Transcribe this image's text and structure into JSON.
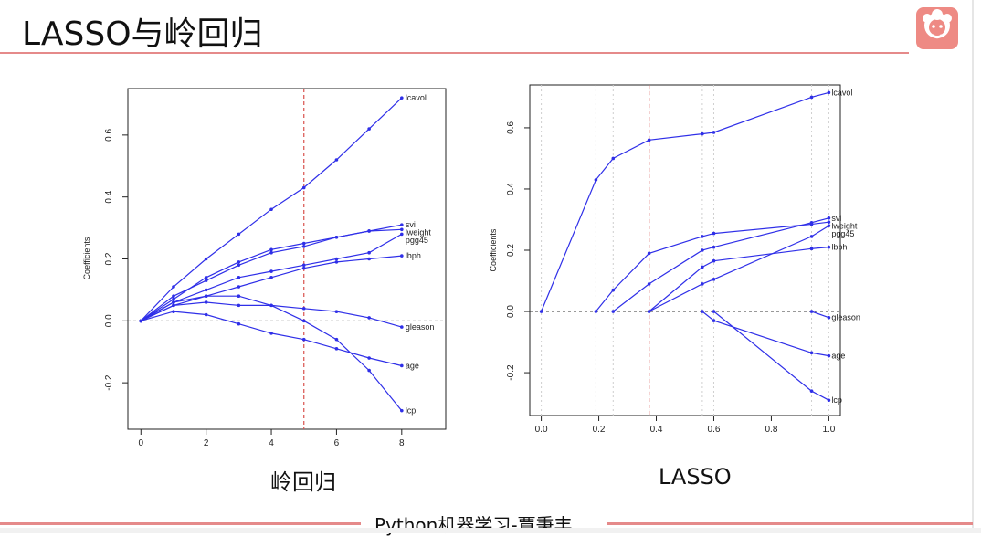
{
  "slide": {
    "title": "LASSO与岭回归",
    "footer": "Python机器学习-覃秉丰"
  },
  "colors": {
    "line": "#2f2fe8",
    "vline": "#d9534f",
    "accent": "#e58a8a"
  },
  "icons": {
    "logo": "cartoon-face-logo-icon"
  },
  "chart_data": [
    {
      "type": "line",
      "caption": "岭回归",
      "xlabel": "",
      "ylabel": "Coefficients",
      "xlim": [
        -0.4,
        9.35
      ],
      "ylim": [
        -0.35,
        0.75
      ],
      "xticks": [
        0,
        2,
        4,
        6,
        8
      ],
      "yticks": [
        -0.2,
        0.0,
        0.2,
        0.4,
        0.6
      ],
      "vline": 5,
      "hline": 0,
      "series": [
        {
          "name": "lcavol",
          "x": [
            0,
            1,
            2,
            3,
            4,
            5,
            6,
            7,
            8
          ],
          "y": [
            0,
            0.11,
            0.2,
            0.28,
            0.36,
            0.43,
            0.52,
            0.62,
            0.72
          ]
        },
        {
          "name": "svi",
          "x": [
            0,
            1,
            2,
            3,
            4,
            5,
            6,
            7,
            8
          ],
          "y": [
            0,
            0.07,
            0.14,
            0.19,
            0.23,
            0.25,
            0.27,
            0.29,
            0.31
          ]
        },
        {
          "name": "lweight",
          "x": [
            0,
            1,
            2,
            3,
            4,
            5,
            6,
            7,
            8
          ],
          "y": [
            0,
            0.08,
            0.13,
            0.18,
            0.22,
            0.24,
            0.27,
            0.29,
            0.295
          ]
        },
        {
          "name": "pgg45",
          "x": [
            0,
            1,
            2,
            3,
            4,
            5,
            6,
            7,
            8
          ],
          "y": [
            0,
            0.06,
            0.1,
            0.14,
            0.16,
            0.18,
            0.2,
            0.22,
            0.28
          ]
        },
        {
          "name": "lbph",
          "x": [
            0,
            1,
            2,
            3,
            4,
            5,
            6,
            7,
            8
          ],
          "y": [
            0,
            0.05,
            0.08,
            0.11,
            0.14,
            0.17,
            0.19,
            0.2,
            0.21
          ]
        },
        {
          "name": "gleason",
          "x": [
            0,
            1,
            2,
            3,
            4,
            5,
            6,
            7,
            8
          ],
          "y": [
            0,
            0.05,
            0.06,
            0.05,
            0.05,
            0.04,
            0.03,
            0.01,
            -0.02
          ]
        },
        {
          "name": "age",
          "x": [
            0,
            1,
            2,
            3,
            4,
            5,
            6,
            7,
            8
          ],
          "y": [
            0,
            0.03,
            0.02,
            -0.01,
            -0.04,
            -0.06,
            -0.09,
            -0.12,
            -0.145
          ]
        },
        {
          "name": "lcp",
          "x": [
            0,
            1,
            2,
            3,
            4,
            5,
            6,
            7,
            8
          ],
          "y": [
            0,
            0.06,
            0.08,
            0.08,
            0.05,
            0.0,
            -0.06,
            -0.16,
            -0.29
          ]
        }
      ]
    },
    {
      "type": "line",
      "caption": "LASSO",
      "xlabel": "",
      "ylabel": "Coefficients",
      "xlim": [
        -0.04,
        1.04
      ],
      "ylim": [
        -0.34,
        0.74
      ],
      "xticks": [
        0.0,
        0.2,
        0.4,
        0.6,
        0.8,
        1.0
      ],
      "xtick_labels": [
        "0.0",
        "0.2",
        "0.4",
        "0.6",
        "0.8",
        "1.0"
      ],
      "yticks": [
        -0.2,
        0.0,
        0.2,
        0.4,
        0.6
      ],
      "vline": 0.375,
      "hline": 0,
      "knots": [
        0.0,
        0.19,
        0.25,
        0.375,
        0.56,
        0.6,
        0.94,
        1.0
      ],
      "series": [
        {
          "name": "lcavol",
          "x": [
            0.0,
            0.19,
            0.25,
            0.375,
            0.56,
            0.6,
            0.94,
            1.0
          ],
          "y": [
            0,
            0.43,
            0.5,
            0.56,
            0.58,
            0.585,
            0.7,
            0.715
          ]
        },
        {
          "name": "svi",
          "x": [
            0.25,
            0.375,
            0.56,
            0.6,
            0.94,
            1.0
          ],
          "y": [
            0,
            0.09,
            0.2,
            0.21,
            0.29,
            0.305
          ]
        },
        {
          "name": "lweight",
          "x": [
            0.19,
            0.25,
            0.375,
            0.56,
            0.6,
            0.94,
            1.0
          ],
          "y": [
            0,
            0.07,
            0.19,
            0.245,
            0.255,
            0.285,
            0.292
          ]
        },
        {
          "name": "pgg45",
          "x": [
            0.375,
            0.56,
            0.6,
            0.94,
            1.0
          ],
          "y": [
            0,
            0.09,
            0.105,
            0.245,
            0.28
          ]
        },
        {
          "name": "lbph",
          "x": [
            0.375,
            0.56,
            0.6,
            0.94,
            1.0
          ],
          "y": [
            0,
            0.145,
            0.165,
            0.205,
            0.21
          ]
        },
        {
          "name": "gleason",
          "x": [
            0.94,
            1.0
          ],
          "y": [
            0,
            -0.02
          ]
        },
        {
          "name": "age",
          "x": [
            0.56,
            0.6,
            0.94,
            1.0
          ],
          "y": [
            0,
            -0.03,
            -0.135,
            -0.145
          ]
        },
        {
          "name": "lcp",
          "x": [
            0.6,
            0.94,
            1.0
          ],
          "y": [
            0,
            -0.26,
            -0.29
          ]
        }
      ]
    }
  ]
}
